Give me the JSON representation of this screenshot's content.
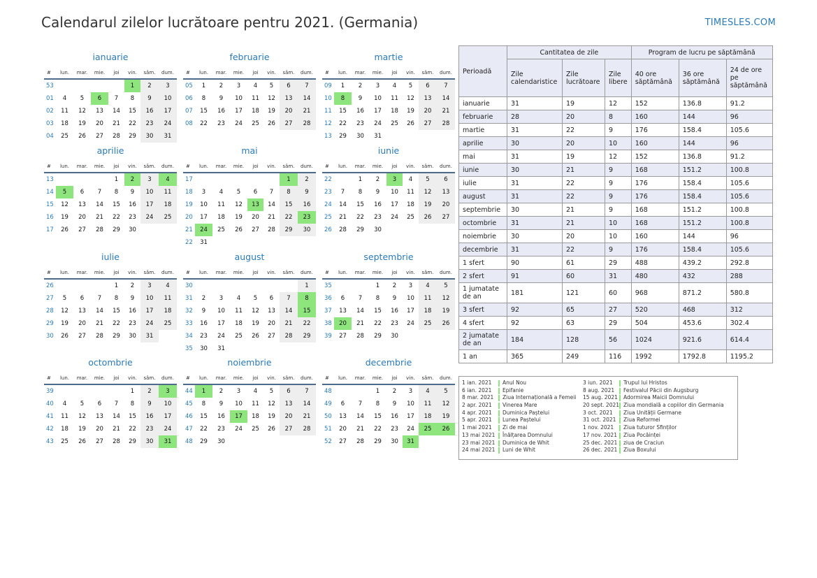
{
  "header": {
    "title": "Calendarul zilelor lucrătoare pentru 2021. (Germania)",
    "site": "TIMESLES.COM"
  },
  "day_headers": [
    "#",
    "lun.",
    "mar.",
    "mie.",
    "joi",
    "vin.",
    "sâm.",
    "dum."
  ],
  "colors": {
    "holiday": "#8ee57e",
    "weekend": "#eeeeee",
    "accent": "#2a7ab8",
    "header_bg": "#e8eaf6"
  },
  "months": [
    {
      "name": "ianuarie",
      "weeks": [
        {
          "w": "53",
          "d": [
            "",
            "",
            "",
            "",
            "1",
            "2",
            "3"
          ]
        },
        {
          "w": "01",
          "d": [
            "4",
            "5",
            "6",
            "7",
            "8",
            "9",
            "10"
          ]
        },
        {
          "w": "02",
          "d": [
            "11",
            "12",
            "13",
            "14",
            "15",
            "16",
            "17"
          ]
        },
        {
          "w": "03",
          "d": [
            "18",
            "19",
            "20",
            "21",
            "22",
            "23",
            "24"
          ]
        },
        {
          "w": "04",
          "d": [
            "25",
            "26",
            "27",
            "28",
            "29",
            "30",
            "31"
          ]
        }
      ],
      "holidays": [
        "1",
        "6"
      ]
    },
    {
      "name": "februarie",
      "weeks": [
        {
          "w": "05",
          "d": [
            "1",
            "2",
            "3",
            "4",
            "5",
            "6",
            "7"
          ]
        },
        {
          "w": "06",
          "d": [
            "8",
            "9",
            "10",
            "11",
            "12",
            "13",
            "14"
          ]
        },
        {
          "w": "07",
          "d": [
            "15",
            "16",
            "17",
            "18",
            "19",
            "20",
            "21"
          ]
        },
        {
          "w": "08",
          "d": [
            "22",
            "23",
            "24",
            "25",
            "26",
            "27",
            "28"
          ]
        }
      ],
      "holidays": []
    },
    {
      "name": "martie",
      "weeks": [
        {
          "w": "09",
          "d": [
            "1",
            "2",
            "3",
            "4",
            "5",
            "6",
            "7"
          ]
        },
        {
          "w": "10",
          "d": [
            "8",
            "9",
            "10",
            "11",
            "12",
            "13",
            "14"
          ]
        },
        {
          "w": "11",
          "d": [
            "15",
            "16",
            "17",
            "18",
            "19",
            "20",
            "21"
          ]
        },
        {
          "w": "12",
          "d": [
            "22",
            "23",
            "24",
            "25",
            "26",
            "27",
            "28"
          ]
        },
        {
          "w": "13",
          "d": [
            "29",
            "30",
            "31",
            "",
            "",
            "",
            ""
          ]
        }
      ],
      "holidays": [
        "8"
      ]
    },
    {
      "name": "aprilie",
      "weeks": [
        {
          "w": "13",
          "d": [
            "",
            "",
            "",
            "1",
            "2",
            "3",
            "4"
          ]
        },
        {
          "w": "14",
          "d": [
            "5",
            "6",
            "7",
            "8",
            "9",
            "10",
            "11"
          ]
        },
        {
          "w": "15",
          "d": [
            "12",
            "13",
            "14",
            "15",
            "16",
            "17",
            "18"
          ]
        },
        {
          "w": "16",
          "d": [
            "19",
            "20",
            "21",
            "22",
            "23",
            "24",
            "25"
          ]
        },
        {
          "w": "17",
          "d": [
            "26",
            "27",
            "28",
            "29",
            "30",
            "",
            ""
          ]
        }
      ],
      "holidays": [
        "2",
        "4",
        "5"
      ]
    },
    {
      "name": "mai",
      "weeks": [
        {
          "w": "17",
          "d": [
            "",
            "",
            "",
            "",
            "",
            "1",
            "2"
          ]
        },
        {
          "w": "18",
          "d": [
            "3",
            "4",
            "5",
            "6",
            "7",
            "8",
            "9"
          ]
        },
        {
          "w": "19",
          "d": [
            "10",
            "11",
            "12",
            "13",
            "14",
            "15",
            "16"
          ]
        },
        {
          "w": "20",
          "d": [
            "17",
            "18",
            "19",
            "20",
            "21",
            "22",
            "23"
          ]
        },
        {
          "w": "21",
          "d": [
            "24",
            "25",
            "26",
            "27",
            "28",
            "29",
            "30"
          ]
        },
        {
          "w": "22",
          "d": [
            "31",
            "",
            "",
            "",
            "",
            "",
            ""
          ]
        }
      ],
      "holidays": [
        "1",
        "13",
        "23",
        "24"
      ]
    },
    {
      "name": "iunie",
      "weeks": [
        {
          "w": "22",
          "d": [
            "",
            "1",
            "2",
            "3",
            "4",
            "5",
            "6"
          ]
        },
        {
          "w": "23",
          "d": [
            "7",
            "8",
            "9",
            "10",
            "11",
            "12",
            "13"
          ]
        },
        {
          "w": "24",
          "d": [
            "14",
            "15",
            "16",
            "17",
            "18",
            "19",
            "20"
          ]
        },
        {
          "w": "25",
          "d": [
            "21",
            "22",
            "23",
            "24",
            "25",
            "26",
            "27"
          ]
        },
        {
          "w": "26",
          "d": [
            "28",
            "29",
            "30",
            "",
            "",
            "",
            ""
          ]
        }
      ],
      "holidays": [
        "3"
      ]
    },
    {
      "name": "iulie",
      "weeks": [
        {
          "w": "26",
          "d": [
            "",
            "",
            "",
            "1",
            "2",
            "3",
            "4"
          ]
        },
        {
          "w": "27",
          "d": [
            "5",
            "6",
            "7",
            "8",
            "9",
            "10",
            "11"
          ]
        },
        {
          "w": "28",
          "d": [
            "12",
            "13",
            "14",
            "15",
            "16",
            "17",
            "18"
          ]
        },
        {
          "w": "29",
          "d": [
            "19",
            "20",
            "21",
            "22",
            "23",
            "24",
            "25"
          ]
        },
        {
          "w": "30",
          "d": [
            "26",
            "27",
            "28",
            "29",
            "30",
            "31",
            ""
          ]
        }
      ],
      "holidays": []
    },
    {
      "name": "august",
      "weeks": [
        {
          "w": "30",
          "d": [
            "",
            "",
            "",
            "",
            "",
            "",
            "1"
          ]
        },
        {
          "w": "31",
          "d": [
            "2",
            "3",
            "4",
            "5",
            "6",
            "7",
            "8"
          ]
        },
        {
          "w": "32",
          "d": [
            "9",
            "10",
            "11",
            "12",
            "13",
            "14",
            "15"
          ]
        },
        {
          "w": "33",
          "d": [
            "16",
            "17",
            "18",
            "19",
            "20",
            "21",
            "22"
          ]
        },
        {
          "w": "34",
          "d": [
            "23",
            "24",
            "25",
            "26",
            "27",
            "28",
            "29"
          ]
        },
        {
          "w": "35",
          "d": [
            "30",
            "31",
            "",
            "",
            "",
            "",
            ""
          ]
        }
      ],
      "holidays": [
        "8",
        "15"
      ]
    },
    {
      "name": "septembrie",
      "weeks": [
        {
          "w": "35",
          "d": [
            "",
            "",
            "1",
            "2",
            "3",
            "4",
            "5"
          ]
        },
        {
          "w": "36",
          "d": [
            "6",
            "7",
            "8",
            "9",
            "10",
            "11",
            "12"
          ]
        },
        {
          "w": "37",
          "d": [
            "13",
            "14",
            "15",
            "16",
            "17",
            "18",
            "19"
          ]
        },
        {
          "w": "38",
          "d": [
            "20",
            "21",
            "22",
            "23",
            "24",
            "25",
            "26"
          ]
        },
        {
          "w": "39",
          "d": [
            "27",
            "28",
            "29",
            "30",
            "",
            "",
            ""
          ]
        }
      ],
      "holidays": [
        "20"
      ]
    },
    {
      "name": "octombrie",
      "weeks": [
        {
          "w": "39",
          "d": [
            "",
            "",
            "",
            "",
            "1",
            "2",
            "3"
          ]
        },
        {
          "w": "40",
          "d": [
            "4",
            "5",
            "6",
            "7",
            "8",
            "9",
            "10"
          ]
        },
        {
          "w": "41",
          "d": [
            "11",
            "12",
            "13",
            "14",
            "15",
            "16",
            "17"
          ]
        },
        {
          "w": "42",
          "d": [
            "18",
            "19",
            "20",
            "21",
            "22",
            "23",
            "24"
          ]
        },
        {
          "w": "43",
          "d": [
            "25",
            "26",
            "27",
            "28",
            "29",
            "30",
            "31"
          ]
        }
      ],
      "holidays": [
        "3",
        "31"
      ]
    },
    {
      "name": "noiembrie",
      "weeks": [
        {
          "w": "44",
          "d": [
            "1",
            "2",
            "3",
            "4",
            "5",
            "6",
            "7"
          ]
        },
        {
          "w": "45",
          "d": [
            "8",
            "9",
            "10",
            "11",
            "12",
            "13",
            "14"
          ]
        },
        {
          "w": "46",
          "d": [
            "15",
            "16",
            "17",
            "18",
            "19",
            "20",
            "21"
          ]
        },
        {
          "w": "47",
          "d": [
            "22",
            "23",
            "24",
            "25",
            "26",
            "27",
            "28"
          ]
        },
        {
          "w": "48",
          "d": [
            "29",
            "30",
            "",
            "",
            "",
            "",
            ""
          ]
        }
      ],
      "holidays": [
        "1",
        "17"
      ]
    },
    {
      "name": "decembrie",
      "weeks": [
        {
          "w": "48",
          "d": [
            "",
            "",
            "1",
            "2",
            "3",
            "4",
            "5"
          ]
        },
        {
          "w": "49",
          "d": [
            "6",
            "7",
            "8",
            "9",
            "10",
            "11",
            "12"
          ]
        },
        {
          "w": "50",
          "d": [
            "13",
            "14",
            "15",
            "16",
            "17",
            "18",
            "19"
          ]
        },
        {
          "w": "51",
          "d": [
            "20",
            "21",
            "22",
            "23",
            "24",
            "25",
            "26"
          ]
        },
        {
          "w": "52",
          "d": [
            "27",
            "28",
            "29",
            "30",
            "31",
            "",
            ""
          ]
        }
      ],
      "holidays": [
        "25",
        "26",
        "31"
      ]
    }
  ],
  "stats": {
    "period_label": "Perioadă",
    "group_days": "Cantitatea de zile",
    "group_hours": "Program de lucru pe săptămână",
    "cols": [
      "Zile calendaristice",
      "Zile lucrătoare",
      "Zile libere",
      "40 ore săptămână",
      "36 ore săptămână",
      "24 de ore pe săptămână"
    ],
    "rows": [
      [
        "ianuarie",
        "31",
        "19",
        "12",
        "152",
        "136.8",
        "91.2"
      ],
      [
        "februarie",
        "28",
        "20",
        "8",
        "160",
        "144",
        "96"
      ],
      [
        "martie",
        "31",
        "22",
        "9",
        "176",
        "158.4",
        "105.6"
      ],
      [
        "aprilie",
        "30",
        "20",
        "10",
        "160",
        "144",
        "96"
      ],
      [
        "mai",
        "31",
        "19",
        "12",
        "152",
        "136.8",
        "91.2"
      ],
      [
        "iunie",
        "30",
        "21",
        "9",
        "168",
        "151.2",
        "100.8"
      ],
      [
        "iulie",
        "31",
        "22",
        "9",
        "176",
        "158.4",
        "105.6"
      ],
      [
        "august",
        "31",
        "22",
        "9",
        "176",
        "158.4",
        "105.6"
      ],
      [
        "septembrie",
        "30",
        "21",
        "9",
        "168",
        "151.2",
        "100.8"
      ],
      [
        "octombrie",
        "31",
        "21",
        "10",
        "168",
        "151.2",
        "100.8"
      ],
      [
        "noiembrie",
        "30",
        "20",
        "10",
        "160",
        "144",
        "96"
      ],
      [
        "decembrie",
        "31",
        "22",
        "9",
        "176",
        "158.4",
        "105.6"
      ],
      [
        "1 sfert",
        "90",
        "61",
        "29",
        "488",
        "439.2",
        "292.8"
      ],
      [
        "2 sfert",
        "91",
        "60",
        "31",
        "480",
        "432",
        "288"
      ],
      [
        "1 jumatate de an",
        "181",
        "121",
        "60",
        "968",
        "871.2",
        "580.8"
      ],
      [
        "3 sfert",
        "92",
        "65",
        "27",
        "520",
        "468",
        "312"
      ],
      [
        "4 sfert",
        "92",
        "63",
        "29",
        "504",
        "453.6",
        "302.4"
      ],
      [
        "2 jumatate de an",
        "184",
        "128",
        "56",
        "1024",
        "921.6",
        "614.4"
      ],
      [
        "1 an",
        "365",
        "249",
        "116",
        "1992",
        "1792.8",
        "1195.2"
      ]
    ]
  },
  "holiday_list": [
    [
      {
        "date": "1 ian. 2021",
        "name": "Anul Nou"
      },
      {
        "date": "6 ian. 2021",
        "name": "Epifanie"
      },
      {
        "date": "8 mar. 2021",
        "name": "Ziua Internațională a Femeii"
      },
      {
        "date": "2 apr. 2021",
        "name": "Vinerea Mare"
      },
      {
        "date": "4 apr. 2021",
        "name": "Duminica Paștelui"
      },
      {
        "date": "5 apr. 2021",
        "name": "Lunea Paștelui"
      },
      {
        "date": "1 mai 2021",
        "name": "Zi de mai"
      },
      {
        "date": "13 mai 2021",
        "name": "Înălțarea Domnului"
      },
      {
        "date": "23 mai 2021",
        "name": "Duminica de Whit"
      },
      {
        "date": "24 mai 2021",
        "name": "Luni de Whit"
      }
    ],
    [
      {
        "date": "3 iun. 2021",
        "name": "Trupul lui Hristos"
      },
      {
        "date": "8 aug. 2021",
        "name": "Festivalul Păcii din Augsburg"
      },
      {
        "date": "15 aug. 2021",
        "name": "Adormirea Maicii Domnului"
      },
      {
        "date": "20 sept. 2021",
        "name": "Ziua mondială a copiilor din Germania"
      },
      {
        "date": "3 oct. 2021",
        "name": "Ziua Unității Germane"
      },
      {
        "date": "31 oct. 2021",
        "name": "Ziua Reformei"
      },
      {
        "date": "1 nov. 2021",
        "name": "Ziua tuturor Sfinților"
      },
      {
        "date": "17 nov. 2021",
        "name": "Ziua Pocăinței"
      },
      {
        "date": "25 dec. 2021",
        "name": "ziua de Craciun"
      },
      {
        "date": "26 dec. 2021",
        "name": "Ziua Boxului"
      }
    ]
  ]
}
